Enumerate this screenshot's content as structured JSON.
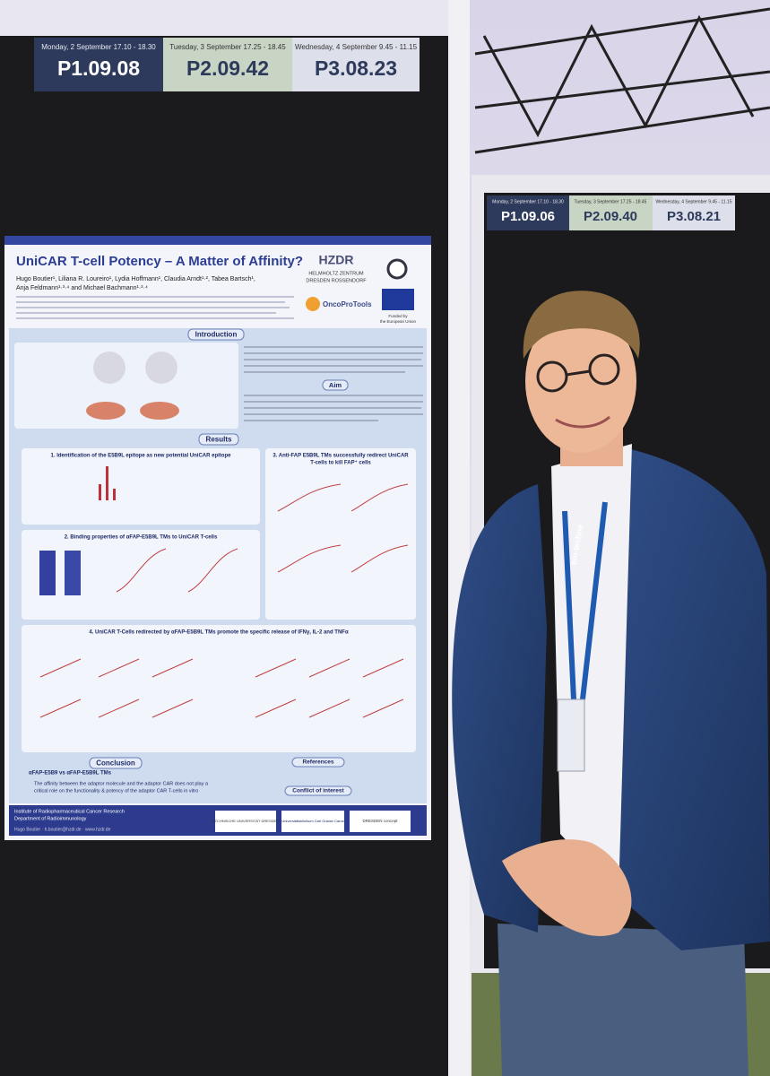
{
  "left_board": {
    "sessions": [
      {
        "date": "Monday, 2 September 17.10 - 18.30",
        "code": "P1.09.08"
      },
      {
        "date": "Tuesday, 3 September 17.25 - 18.45",
        "code": "P2.09.42"
      },
      {
        "date": "Wednesday, 4 September 9.45 - 11.15",
        "code": "P3.08.23"
      }
    ]
  },
  "right_board": {
    "sessions": [
      {
        "date": "Monday, 2 September 17.10 - 18.30",
        "code": "P1.09.06"
      },
      {
        "date": "Tuesday, 3 September 17.25 - 18.45",
        "code": "P2.09.40"
      },
      {
        "date": "Wednesday, 4 September 9.45 - 11.15",
        "code": "P3.08.21"
      }
    ]
  },
  "poster": {
    "title": "UniCAR T-cell Potency – A Matter of Affinity?",
    "authors_line1": "Hugo Boutier¹, Liliana R. Loureiro¹, Lydia Hoffmann¹, Claudia Arndt¹·², Tabea Bartsch¹,",
    "authors_line2": "Anja Feldmann¹·³·⁴ and Michael Bachmann¹·³·⁴",
    "hzdr": "HZDR",
    "hzdr_name1": "HELMHOLTZ ZENTRUM",
    "hzdr_name2": "DRESDEN ROSSENDORF",
    "oncoprotools": "OncoProTools",
    "eu_funding1": "Funded by",
    "eu_funding2": "the European Union",
    "introduction": "Introduction",
    "aim": "Aim",
    "results": "Results",
    "panel1": "1. Identification of the E5B9L epitope as new potential UniCAR epitope",
    "panel2": "2. Binding properties of αFAP-E5B9L TMs to UniCAR T-cells",
    "panel3_line1": "3. Anti-FAP E5B9L TMs successfully redirect UniCAR",
    "panel3_line2": "T-cells to kill FAP⁺ cells",
    "panel4": "4. UniCAR T-Cells redirected by αFAP-E5B9L TMs promote the specific release of IFNγ, IL-2 and TNFα",
    "conclusion": "Conclusion",
    "conclusion_heading": "αFAP-E5B9 vs αFAP-E5B9L TMs",
    "conclusion_line1": "The affinity between the adaptor molecule and the adaptor CAR does not play a",
    "conclusion_line2": "critical role on the functionality & potency of the adaptor CAR T-cells in vitro",
    "references": "References",
    "conflict": "Conflict of interest",
    "footer1": "Institute of Radiopharmaceutical Cancer Research",
    "footer2": "Department of Radioimmunology",
    "footer3": "Hugo Boutier · h.boutier@hzdr.de · www.hzdr.de",
    "partner1": "TECHNISCHE UNIVERSITÄT DRESDEN",
    "partner2": "Universitätsklinikum Carl Gustav Carus",
    "partner3": "DRESDEN concept"
  },
  "lanyard": "bio-techne"
}
